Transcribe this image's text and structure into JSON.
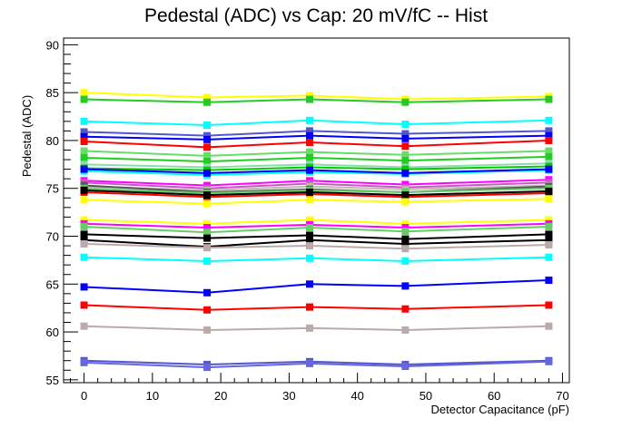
{
  "chart_data": {
    "type": "line",
    "title": "Pedestal (ADC) vs Cap: 20 mV/fC -- Hist",
    "xlabel": "Detector Capacitance (pF)",
    "ylabel": "Pedestal (ADC)",
    "xlim": [
      -3,
      71
    ],
    "ylim": [
      54.7,
      90.7
    ],
    "xticks": [
      0,
      10,
      20,
      30,
      40,
      50,
      60,
      70
    ],
    "yticks": [
      55,
      60,
      65,
      70,
      75,
      80,
      85,
      90
    ],
    "grid": false,
    "x": [
      0,
      18,
      33,
      47,
      68
    ],
    "series": [
      {
        "color": "#ffff00",
        "values": [
          85.0,
          84.5,
          84.7,
          84.3,
          84.6
        ]
      },
      {
        "color": "#22cc22",
        "values": [
          84.3,
          84.0,
          84.3,
          84.0,
          84.3
        ]
      },
      {
        "color": "#00ffff",
        "values": [
          82.0,
          81.6,
          82.1,
          81.7,
          82.1
        ]
      },
      {
        "color": "#5555cc",
        "values": [
          80.9,
          80.5,
          81.0,
          80.7,
          81.0
        ]
      },
      {
        "color": "#0000ff",
        "values": [
          80.4,
          80.1,
          80.5,
          80.2,
          80.5
        ]
      },
      {
        "color": "#ff0000",
        "values": [
          79.9,
          79.3,
          79.8,
          79.4,
          80.0
        ]
      },
      {
        "color": "#66dd66",
        "values": [
          78.9,
          78.4,
          78.8,
          78.5,
          78.9
        ]
      },
      {
        "color": "#22cc22",
        "values": [
          78.2,
          77.8,
          78.2,
          77.9,
          78.3
        ]
      },
      {
        "color": "#88ddaa",
        "values": [
          77.5,
          77.2,
          77.5,
          77.2,
          77.6
        ]
      },
      {
        "color": "#00cc00",
        "values": [
          77.1,
          76.9,
          77.2,
          77.0,
          77.3
        ]
      },
      {
        "color": "#00ffff",
        "values": [
          76.8,
          76.4,
          76.7,
          76.5,
          76.9
        ]
      },
      {
        "color": "#0000ff",
        "values": [
          77.0,
          76.6,
          76.9,
          76.6,
          77.0
        ]
      },
      {
        "color": "#ff00ff",
        "values": [
          75.8,
          75.3,
          75.8,
          75.4,
          75.9
        ]
      },
      {
        "color": "#cc55cc",
        "values": [
          75.6,
          75.0,
          75.5,
          75.1,
          75.6
        ]
      },
      {
        "color": "#bbbbaa",
        "values": [
          75.2,
          74.8,
          75.2,
          74.9,
          75.3
        ]
      },
      {
        "color": "#555555",
        "values": [
          75.3,
          74.6,
          74.9,
          74.6,
          75.2
        ]
      },
      {
        "color": "#66cc66",
        "values": [
          75.0,
          74.5,
          74.8,
          74.6,
          75.0
        ]
      },
      {
        "color": "#ff0000",
        "values": [
          74.6,
          74.1,
          74.4,
          74.1,
          74.5
        ]
      },
      {
        "color": "#000000",
        "values": [
          74.8,
          74.3,
          74.6,
          74.3,
          74.7
        ]
      },
      {
        "color": "#ffff00",
        "values": [
          73.8,
          73.4,
          73.8,
          73.6,
          73.9
        ]
      },
      {
        "color": "#ffff00",
        "values": [
          71.7,
          71.3,
          71.7,
          71.3,
          71.7
        ]
      },
      {
        "color": "#ff00ff",
        "values": [
          71.3,
          70.9,
          71.2,
          70.9,
          71.3
        ]
      },
      {
        "color": "#66cc66",
        "values": [
          71.0,
          70.4,
          70.9,
          70.5,
          71.0
        ]
      },
      {
        "color": "#000000",
        "values": [
          70.2,
          69.8,
          70.1,
          69.7,
          70.2
        ]
      },
      {
        "color": "#000000",
        "values": [
          69.6,
          68.9,
          69.6,
          69.2,
          69.6
        ]
      },
      {
        "color": "#bbaaaa",
        "values": [
          69.2,
          68.8,
          69.0,
          68.7,
          69.1
        ]
      },
      {
        "color": "#00ffff",
        "values": [
          67.8,
          67.4,
          67.7,
          67.4,
          67.8
        ]
      },
      {
        "color": "#0000ff",
        "values": [
          64.7,
          64.1,
          65.0,
          64.8,
          65.4
        ]
      },
      {
        "color": "#ff0000",
        "values": [
          62.8,
          62.3,
          62.6,
          62.4,
          62.8
        ]
      },
      {
        "color": "#bbaaaa",
        "values": [
          60.6,
          60.2,
          60.4,
          60.2,
          60.6
        ]
      },
      {
        "color": "#5555cc",
        "values": [
          57.0,
          56.6,
          56.9,
          56.6,
          57.0
        ]
      },
      {
        "color": "#6666dd",
        "values": [
          56.8,
          56.3,
          56.7,
          56.4,
          56.9
        ]
      }
    ]
  }
}
